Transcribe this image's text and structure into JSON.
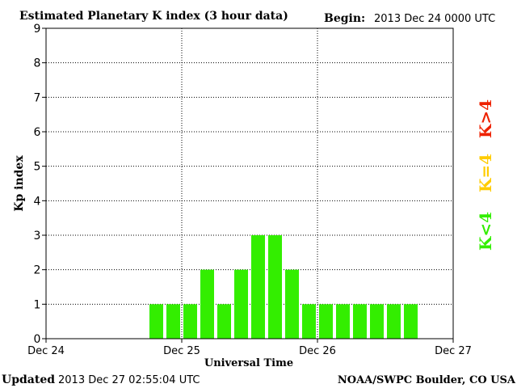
{
  "chart_data": {
    "type": "bar",
    "title": "Estimated Planetary K index (3 hour data)",
    "begin_label": "Begin:",
    "begin_value": "2013 Dec 24 0000 UTC",
    "xlabel": "Universal Time",
    "ylabel": "Kp index",
    "ylim": [
      0,
      9
    ],
    "yticks": [
      "0",
      "1",
      "2",
      "3",
      "4",
      "5",
      "6",
      "7",
      "8",
      "9"
    ],
    "x_ticks": [
      "Dec 24",
      "Dec 25",
      "Dec 26",
      "Dec 27"
    ],
    "intervals_per_day": 8,
    "values": [
      null,
      null,
      null,
      null,
      null,
      null,
      1,
      1,
      1,
      2,
      1,
      2,
      3,
      3,
      2,
      1,
      1,
      1,
      1,
      1,
      1,
      1,
      null,
      null
    ],
    "grid": "dotted",
    "bar_color": "#33ee00",
    "legend": [
      {
        "label": "K<4",
        "color": "#33ee00"
      },
      {
        "label": "K=4",
        "color": "#ffcc00"
      },
      {
        "label": "K>4",
        "color": "#ee2200"
      }
    ]
  },
  "footer": {
    "updated_label": "Updated",
    "updated_value": "2013 Dec 27 02:55:04 UTC",
    "source": "NOAA/SWPC Boulder, CO USA"
  }
}
